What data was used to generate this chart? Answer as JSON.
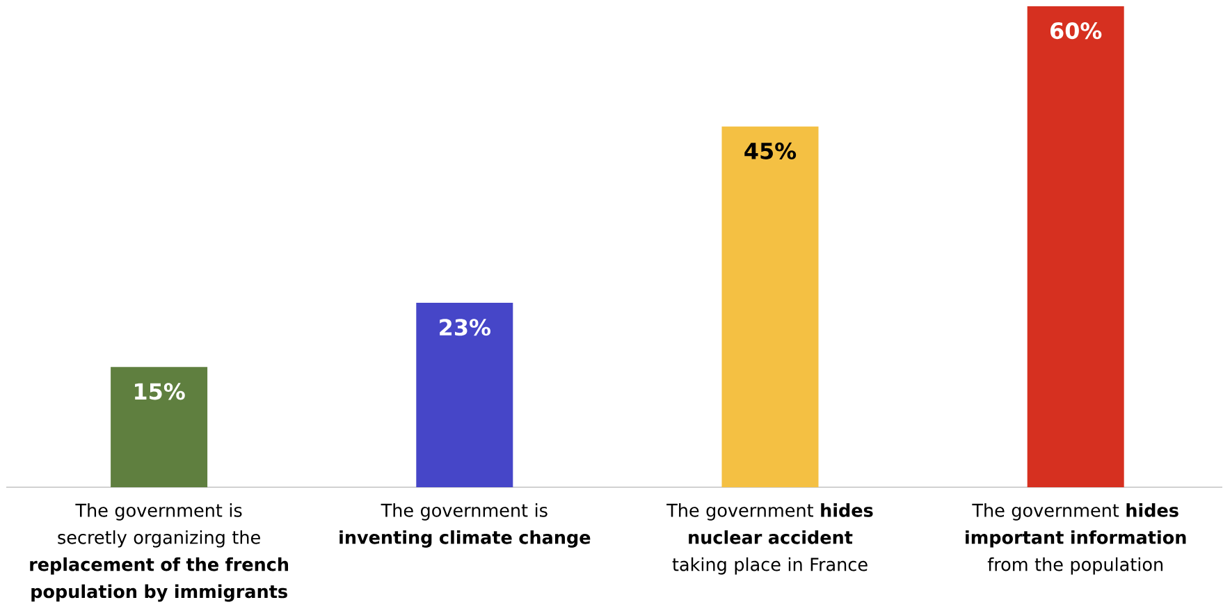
{
  "chart_data": {
    "type": "bar",
    "categories": [
      "The government is secretly organizing the **replacement of the french population by immigrants**",
      "The government is **inventing climate change**",
      "The government **hides nuclear accident** taking place in France",
      "The government **hides important information** from the population"
    ],
    "values": [
      15,
      23,
      45,
      60
    ],
    "colors": [
      "#5f7f3f",
      "#4646c8",
      "#f4c043",
      "#d63020"
    ],
    "value_labels": [
      "15%",
      "23%",
      "45%",
      "60%"
    ]
  }
}
